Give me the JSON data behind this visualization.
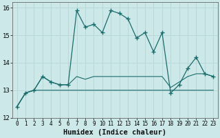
{
  "title": "",
  "xlabel": "Humidex (Indice chaleur)",
  "ylabel": "",
  "bg_color": "#cce8e8",
  "line_color": "#1a6b6b",
  "x": [
    0,
    1,
    2,
    3,
    4,
    5,
    6,
    7,
    8,
    9,
    10,
    11,
    12,
    13,
    14,
    15,
    16,
    17,
    18,
    19,
    20,
    21,
    22,
    23
  ],
  "y_main": [
    12.4,
    12.9,
    13.0,
    13.5,
    13.3,
    13.2,
    13.2,
    15.9,
    15.3,
    15.4,
    15.1,
    15.9,
    15.8,
    15.6,
    14.9,
    15.1,
    14.4,
    15.1,
    12.9,
    13.2,
    13.8,
    14.2,
    13.6,
    13.5
  ],
  "y_low": [
    12.4,
    12.9,
    13.0,
    13.0,
    13.0,
    13.0,
    13.0,
    13.0,
    13.0,
    13.0,
    13.0,
    13.0,
    13.0,
    13.0,
    13.0,
    13.0,
    13.0,
    13.0,
    13.0,
    13.0,
    13.0,
    13.0,
    13.0,
    13.0
  ],
  "y_high": [
    12.4,
    12.9,
    13.0,
    13.5,
    13.3,
    13.2,
    13.2,
    13.5,
    13.4,
    13.5,
    13.5,
    13.5,
    13.5,
    13.5,
    13.5,
    13.5,
    13.5,
    13.5,
    13.1,
    13.3,
    13.5,
    13.6,
    13.6,
    13.5
  ],
  "ylim": [
    12,
    16.2
  ],
  "xlim": [
    -0.5,
    23.5
  ],
  "yticks": [
    12,
    13,
    14,
    15,
    16
  ],
  "xticks": [
    0,
    1,
    2,
    3,
    4,
    5,
    6,
    7,
    8,
    9,
    10,
    11,
    12,
    13,
    14,
    15,
    16,
    17,
    18,
    19,
    20,
    21,
    22,
    23
  ],
  "grid_color": "#b8d8d8",
  "fontsize_label": 7,
  "fontsize_tick": 7,
  "fontsize_xlabel": 7.5
}
